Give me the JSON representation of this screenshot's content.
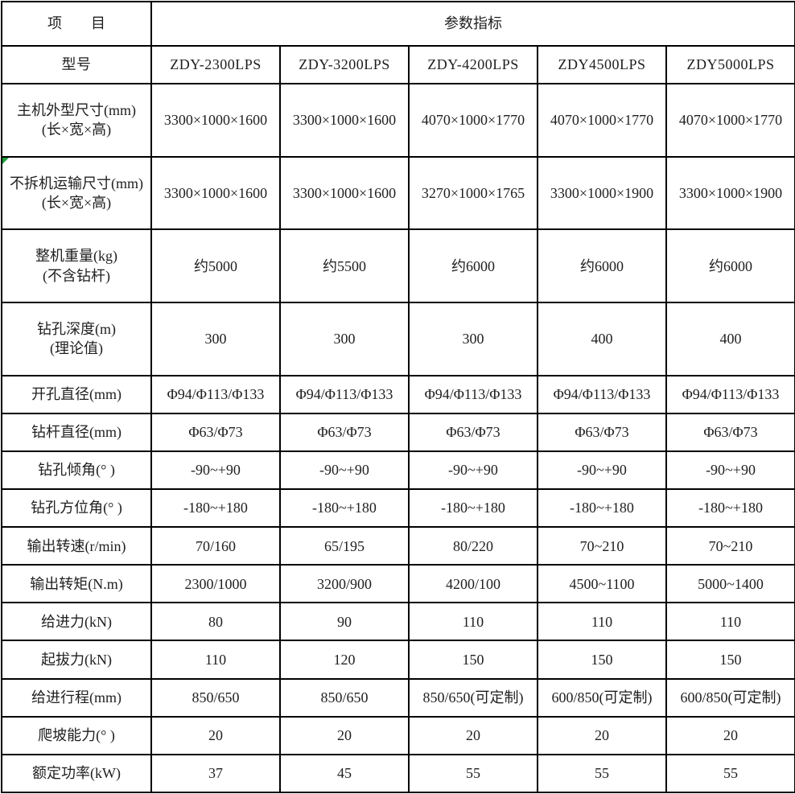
{
  "colors": {
    "border": "#000000",
    "text": "#1f1f1f",
    "background": "#ffffff",
    "corner_marker": "#1d9e3c"
  },
  "header": {
    "item_label": "项　　目",
    "params_label": "参数指标"
  },
  "model_row": {
    "label": "型号",
    "values": [
      "ZDY-2300LPS",
      "ZDY-3200LPS",
      "ZDY-4200LPS",
      "ZDY4500LPS",
      "ZDY5000LPS"
    ]
  },
  "rows": [
    {
      "label": "主机外型尺寸(mm)",
      "sublabel": "(长×宽×高)",
      "values": [
        "3300×1000×1600",
        "3300×1000×1600",
        "4070×1000×1770",
        "4070×1000×1770",
        "4070×1000×1770"
      ]
    },
    {
      "label": "不拆机运输尺寸(mm)",
      "sublabel": "(长×宽×高)",
      "marker": true,
      "values": [
        "3300×1000×1600",
        "3300×1000×1600",
        "3270×1000×1765",
        "3300×1000×1900",
        "3300×1000×1900"
      ]
    },
    {
      "label": "整机重量(kg)",
      "sublabel": "(不含钻杆)",
      "values": [
        "约5000",
        "约5500",
        "约6000",
        "约6000",
        "约6000"
      ]
    },
    {
      "label": "钻孔深度(m)",
      "sublabel": "(理论值)",
      "values": [
        "300",
        "300",
        "300",
        "400",
        "400"
      ]
    },
    {
      "label": "开孔直径(mm)",
      "values": [
        "Φ94/Φ113/Φ133",
        "Φ94/Φ113/Φ133",
        "Φ94/Φ113/Φ133",
        "Φ94/Φ113/Φ133",
        "Φ94/Φ113/Φ133"
      ]
    },
    {
      "label": "钻杆直径(mm)",
      "values": [
        "Φ63/Φ73",
        "Φ63/Φ73",
        "Φ63/Φ73",
        "Φ63/Φ73",
        "Φ63/Φ73"
      ]
    },
    {
      "label": "钻孔倾角(° )",
      "values": [
        "-90~+90",
        "-90~+90",
        "-90~+90",
        "-90~+90",
        "-90~+90"
      ]
    },
    {
      "label": "钻孔方位角(° )",
      "values": [
        "-180~+180",
        "-180~+180",
        "-180~+180",
        "-180~+180",
        "-180~+180"
      ]
    },
    {
      "label": "输出转速(r/min)",
      "values": [
        "70/160",
        "65/195",
        "80/220",
        "70~210",
        "70~210"
      ]
    },
    {
      "label": "输出转矩(N.m)",
      "values": [
        "2300/1000",
        "3200/900",
        "4200/100",
        "4500~1100",
        "5000~1400"
      ]
    },
    {
      "label": "给进力(kN)",
      "values": [
        "80",
        "90",
        "110",
        "110",
        "110"
      ]
    },
    {
      "label": "起拔力(kN)",
      "values": [
        "110",
        "120",
        "150",
        "150",
        "150"
      ]
    },
    {
      "label": "给进行程(mm)",
      "values": [
        "850/650",
        "850/650",
        "850/650(可定制)",
        "600/850(可定制)",
        "600/850(可定制)"
      ]
    },
    {
      "label": "爬坡能力(° )",
      "values": [
        "20",
        "20",
        "20",
        "20",
        "20"
      ]
    },
    {
      "label": "额定功率(kW)",
      "values": [
        "37",
        "45",
        "55",
        "55",
        "55"
      ]
    }
  ]
}
